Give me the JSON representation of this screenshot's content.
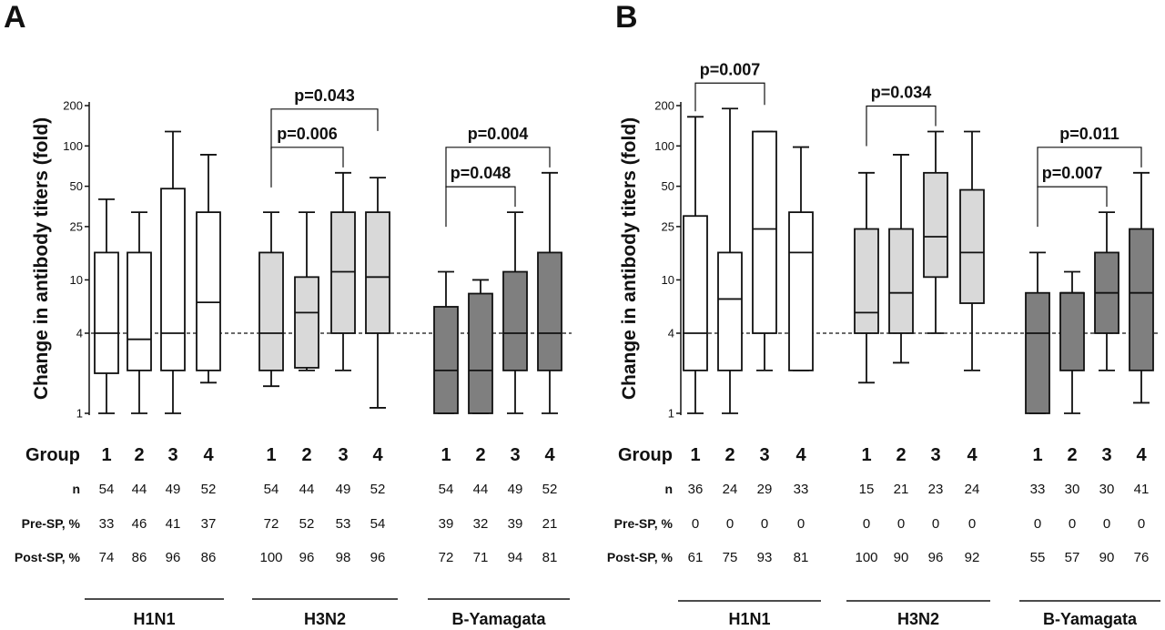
{
  "chart_data": [
    {
      "type": "box",
      "panel": "A",
      "ylabel": "Change in antibody titers (fold)",
      "yscale": "log",
      "ylim": [
        1,
        200
      ],
      "yticks": [
        1,
        4,
        10,
        25,
        50,
        100,
        200
      ],
      "reference_line": 4,
      "group_label": "Group",
      "row_labels": [
        "n",
        "Pre-SP, %",
        "Post-SP, %"
      ],
      "strains": [
        {
          "name": "H1N1",
          "fill": "#ffffff",
          "groups": [
            "1",
            "2",
            "3",
            "4"
          ],
          "boxes": [
            {
              "min": 1,
              "q1": 2,
              "median": 4,
              "q3": 16,
              "max": 40
            },
            {
              "min": 1,
              "q1": 2.1,
              "median": 3.6,
              "q3": 16,
              "max": 32
            },
            {
              "min": 1,
              "q1": 2.1,
              "median": 4,
              "q3": 48,
              "max": 128
            },
            {
              "min": 1.7,
              "q1": 2.1,
              "median": 6.8,
              "q3": 32,
              "max": 86
            }
          ],
          "n": [
            "54",
            "44",
            "49",
            "52"
          ],
          "pre_sp": [
            "33",
            "46",
            "41",
            "37"
          ],
          "post_sp": [
            "74",
            "86",
            "96",
            "86"
          ],
          "pvalues": []
        },
        {
          "name": "H3N2",
          "fill": "#d9d9d9",
          "groups": [
            "1",
            "2",
            "3",
            "4"
          ],
          "boxes": [
            {
              "min": 1.6,
              "q1": 2.1,
              "median": 4,
              "q3": 16,
              "max": 32
            },
            {
              "min": 2.1,
              "q1": 2.2,
              "median": 5.7,
              "q3": 10.5,
              "max": 32
            },
            {
              "min": 2.1,
              "q1": 4,
              "median": 11.5,
              "q3": 32,
              "max": 63
            },
            {
              "min": 1.1,
              "q1": 4,
              "median": 10.5,
              "q3": 32,
              "max": 58
            }
          ],
          "n": [
            "54",
            "44",
            "49",
            "52"
          ],
          "pre_sp": [
            "72",
            "52",
            "53",
            "54"
          ],
          "post_sp": [
            "100",
            "96",
            "98",
            "96"
          ],
          "pvalues": [
            {
              "from": 1,
              "to": 3,
              "label": "p=0.006"
            },
            {
              "from": 1,
              "to": 4,
              "label": "p=0.043"
            }
          ]
        },
        {
          "name": "B-Yamagata",
          "fill": "#7f7f7f",
          "groups": [
            "1",
            "2",
            "3",
            "4"
          ],
          "boxes": [
            {
              "min": 1,
              "q1": 1,
              "median": 2.1,
              "q3": 6.3,
              "max": 11.5
            },
            {
              "min": 1,
              "q1": 1,
              "median": 2.1,
              "q3": 7.9,
              "max": 10
            },
            {
              "min": 1,
              "q1": 2.1,
              "median": 4,
              "q3": 11.5,
              "max": 32
            },
            {
              "min": 1,
              "q1": 2.1,
              "median": 4,
              "q3": 16,
              "max": 63
            }
          ],
          "n": [
            "54",
            "44",
            "49",
            "52"
          ],
          "pre_sp": [
            "39",
            "32",
            "39",
            "21"
          ],
          "post_sp": [
            "72",
            "71",
            "94",
            "81"
          ],
          "pvalues": [
            {
              "from": 1,
              "to": 3,
              "label": "p=0.048"
            },
            {
              "from": 1,
              "to": 4,
              "label": "p=0.004"
            }
          ]
        }
      ]
    },
    {
      "type": "box",
      "panel": "B",
      "ylabel": "Change in antibody titers (fold)",
      "yscale": "log",
      "ylim": [
        1,
        200
      ],
      "yticks": [
        1,
        4,
        10,
        25,
        50,
        100,
        200
      ],
      "reference_line": 4,
      "group_label": "Group",
      "row_labels": [
        "n",
        "Pre-SP, %",
        "Post-SP, %"
      ],
      "strains": [
        {
          "name": "H1N1",
          "fill": "#ffffff",
          "groups": [
            "1",
            "2",
            "3",
            "4"
          ],
          "boxes": [
            {
              "min": 1,
              "q1": 2.1,
              "median": 4,
              "q3": 30,
              "max": 165
            },
            {
              "min": 1,
              "q1": 2.1,
              "median": 7.2,
              "q3": 16,
              "max": 190
            },
            {
              "min": 2.1,
              "q1": 4,
              "median": 24,
              "q3": 128,
              "max": 128
            },
            {
              "min": 2.1,
              "q1": 2.1,
              "median": 16,
              "q3": 32,
              "max": 98
            }
          ],
          "n": [
            "36",
            "24",
            "29",
            "33"
          ],
          "pre_sp": [
            "0",
            "0",
            "0",
            "0"
          ],
          "post_sp": [
            "61",
            "75",
            "93",
            "81"
          ],
          "pvalues": [
            {
              "from": 1,
              "to": 3,
              "label": "p=0.007"
            }
          ]
        },
        {
          "name": "H3N2",
          "fill": "#d9d9d9",
          "groups": [
            "1",
            "2",
            "3",
            "4"
          ],
          "boxes": [
            {
              "min": 1.7,
              "q1": 4,
              "median": 5.7,
              "q3": 24,
              "max": 63
            },
            {
              "min": 2.4,
              "q1": 4,
              "median": 8,
              "q3": 24,
              "max": 86
            },
            {
              "min": 4,
              "q1": 10.5,
              "median": 21,
              "q3": 63,
              "max": 128
            },
            {
              "min": 2.1,
              "q1": 6.7,
              "median": 16,
              "q3": 47,
              "max": 128
            }
          ],
          "n": [
            "15",
            "21",
            "23",
            "24"
          ],
          "pre_sp": [
            "0",
            "0",
            "0",
            "0"
          ],
          "post_sp": [
            "100",
            "90",
            "96",
            "92"
          ],
          "pvalues": [
            {
              "from": 1,
              "to": 3,
              "label": "p=0.034"
            }
          ]
        },
        {
          "name": "B-Yamagata",
          "fill": "#7f7f7f",
          "groups": [
            "1",
            "2",
            "3",
            "4"
          ],
          "boxes": [
            {
              "min": 1,
              "q1": 1,
              "median": 4,
              "q3": 8,
              "max": 16
            },
            {
              "min": 1,
              "q1": 2.1,
              "median": 8,
              "q3": 8,
              "max": 11.5
            },
            {
              "min": 2.1,
              "q1": 4,
              "median": 8,
              "q3": 16,
              "max": 32
            },
            {
              "min": 1.2,
              "q1": 2.1,
              "median": 8,
              "q3": 24,
              "max": 63
            }
          ],
          "n": [
            "33",
            "30",
            "30",
            "41"
          ],
          "pre_sp": [
            "0",
            "0",
            "0",
            "0"
          ],
          "post_sp": [
            "55",
            "57",
            "90",
            "76"
          ],
          "pvalues": [
            {
              "from": 1,
              "to": 3,
              "label": "p=0.007"
            },
            {
              "from": 1,
              "to": 4,
              "label": "p=0.011"
            }
          ]
        }
      ]
    }
  ]
}
